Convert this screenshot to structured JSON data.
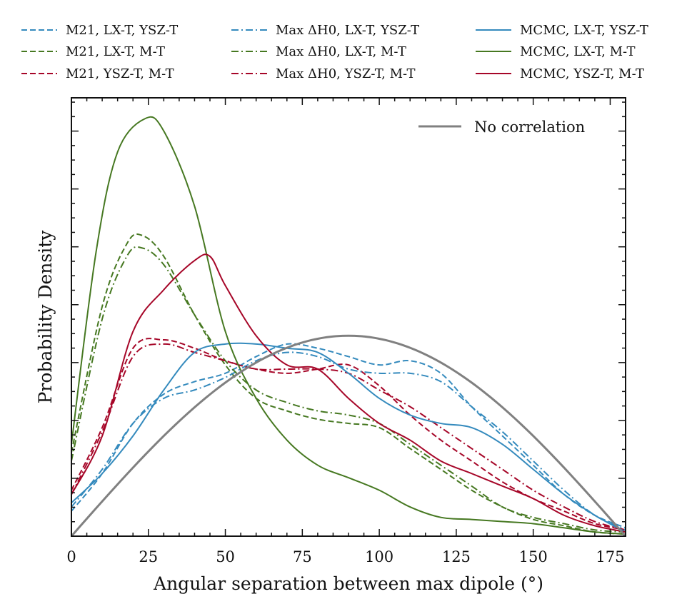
{
  "chart_data": {
    "type": "line",
    "xlabel": "Angular separation between max dipole (°)",
    "ylabel": "Probability Density",
    "xlim": [
      0,
      180
    ],
    "ylim": [
      0,
      1.0
    ],
    "x_ticks": [
      0,
      25,
      50,
      75,
      100,
      125,
      150,
      175
    ],
    "x_tick_labels": [
      "0",
      "25",
      "50",
      "75",
      "100",
      "125",
      "150",
      "175"
    ],
    "y_tick_labels_shown": false,
    "grid": false,
    "legend_top": {
      "placement": "above-plot",
      "columns": 3,
      "entries": [
        {
          "label": "M21, LX-T, YSZ-T",
          "series": "m21_lx_ysz"
        },
        {
          "label": "M21, LX-T, M-T",
          "series": "m21_lx_m"
        },
        {
          "label": "M21, YSZ-T, M-T",
          "series": "m21_ysz_m"
        },
        {
          "label": "Max ΔH0, LX-T, YSZ-T",
          "series": "maxh_lx_ysz"
        },
        {
          "label": "Max ΔH0, LX-T, M-T",
          "series": "maxh_lx_m"
        },
        {
          "label": "Max ΔH0, YSZ-T, M-T",
          "series": "maxh_ysz_m"
        },
        {
          "label": "MCMC, LX-T, YSZ-T",
          "series": "mcmc_lx_ysz"
        },
        {
          "label": "MCMC, LX-T, M-T",
          "series": "mcmc_lx_m"
        },
        {
          "label": "MCMC, YSZ-T, M-T",
          "series": "mcmc_ysz_m"
        }
      ]
    },
    "legend_inner": {
      "placement": "top-right",
      "label": "No correlation"
    },
    "series": [
      {
        "id": "m21_lx_ysz",
        "name": "M21, LX-T, YSZ-T",
        "color": "#348abd",
        "dash": "dashed",
        "points": [
          [
            0,
            0.06
          ],
          [
            10,
            0.15
          ],
          [
            20,
            0.27
          ],
          [
            30,
            0.34
          ],
          [
            40,
            0.37
          ],
          [
            50,
            0.39
          ],
          [
            60,
            0.43
          ],
          [
            70,
            0.46
          ],
          [
            80,
            0.45
          ],
          [
            90,
            0.43
          ],
          [
            100,
            0.41
          ],
          [
            110,
            0.42
          ],
          [
            120,
            0.39
          ],
          [
            130,
            0.31
          ],
          [
            140,
            0.24
          ],
          [
            150,
            0.17
          ],
          [
            160,
            0.1
          ],
          [
            170,
            0.05
          ],
          [
            180,
            0.02
          ]
        ]
      },
      {
        "id": "m21_lx_m",
        "name": "M21, LX-T, M-T",
        "color": "#467821",
        "dash": "dashed",
        "points": [
          [
            0,
            0.2
          ],
          [
            10,
            0.55
          ],
          [
            18,
            0.7
          ],
          [
            23,
            0.72
          ],
          [
            30,
            0.67
          ],
          [
            40,
            0.53
          ],
          [
            50,
            0.41
          ],
          [
            60,
            0.33
          ],
          [
            70,
            0.3
          ],
          [
            80,
            0.28
          ],
          [
            90,
            0.27
          ],
          [
            100,
            0.26
          ],
          [
            110,
            0.21
          ],
          [
            120,
            0.16
          ],
          [
            130,
            0.11
          ],
          [
            140,
            0.07
          ],
          [
            150,
            0.04
          ],
          [
            160,
            0.025
          ],
          [
            170,
            0.01
          ],
          [
            180,
            0.005
          ]
        ]
      },
      {
        "id": "m21_ysz_m",
        "name": "M21, YSZ-T, M-T",
        "color": "#a60628",
        "dash": "dashed",
        "points": [
          [
            0,
            0.11
          ],
          [
            10,
            0.26
          ],
          [
            20,
            0.45
          ],
          [
            30,
            0.47
          ],
          [
            40,
            0.45
          ],
          [
            50,
            0.42
          ],
          [
            60,
            0.4
          ],
          [
            70,
            0.39
          ],
          [
            80,
            0.4
          ],
          [
            90,
            0.41
          ],
          [
            100,
            0.36
          ],
          [
            110,
            0.29
          ],
          [
            120,
            0.23
          ],
          [
            130,
            0.18
          ],
          [
            140,
            0.13
          ],
          [
            150,
            0.09
          ],
          [
            160,
            0.06
          ],
          [
            170,
            0.03
          ],
          [
            180,
            0.015
          ]
        ]
      },
      {
        "id": "maxh_lx_ysz",
        "name": "Max ΔH0, LX-T, YSZ-T",
        "color": "#348abd",
        "dash": "dashdot",
        "points": [
          [
            0,
            0.07
          ],
          [
            10,
            0.16
          ],
          [
            20,
            0.27
          ],
          [
            30,
            0.33
          ],
          [
            40,
            0.35
          ],
          [
            50,
            0.38
          ],
          [
            60,
            0.42
          ],
          [
            70,
            0.44
          ],
          [
            80,
            0.43
          ],
          [
            90,
            0.4
          ],
          [
            100,
            0.39
          ],
          [
            110,
            0.39
          ],
          [
            120,
            0.37
          ],
          [
            130,
            0.31
          ],
          [
            140,
            0.25
          ],
          [
            150,
            0.18
          ],
          [
            160,
            0.11
          ],
          [
            170,
            0.05
          ],
          [
            180,
            0.015
          ]
        ]
      },
      {
        "id": "maxh_lx_m",
        "name": "Max ΔH0, LX-T, M-T",
        "color": "#467821",
        "dash": "dashdot",
        "points": [
          [
            0,
            0.18
          ],
          [
            10,
            0.52
          ],
          [
            18,
            0.67
          ],
          [
            23,
            0.69
          ],
          [
            30,
            0.65
          ],
          [
            40,
            0.53
          ],
          [
            50,
            0.42
          ],
          [
            60,
            0.35
          ],
          [
            70,
            0.32
          ],
          [
            80,
            0.3
          ],
          [
            90,
            0.29
          ],
          [
            100,
            0.27
          ],
          [
            110,
            0.22
          ],
          [
            120,
            0.17
          ],
          [
            130,
            0.12
          ],
          [
            140,
            0.07
          ],
          [
            150,
            0.045
          ],
          [
            160,
            0.03
          ],
          [
            170,
            0.015
          ],
          [
            180,
            0.01
          ]
        ]
      },
      {
        "id": "maxh_ysz_m",
        "name": "Max ΔH0, YSZ-T, M-T",
        "color": "#a60628",
        "dash": "dashdot",
        "points": [
          [
            0,
            0.1
          ],
          [
            10,
            0.25
          ],
          [
            20,
            0.43
          ],
          [
            30,
            0.46
          ],
          [
            40,
            0.44
          ],
          [
            50,
            0.42
          ],
          [
            60,
            0.4
          ],
          [
            70,
            0.4
          ],
          [
            80,
            0.4
          ],
          [
            90,
            0.39
          ],
          [
            100,
            0.35
          ],
          [
            110,
            0.31
          ],
          [
            120,
            0.26
          ],
          [
            130,
            0.21
          ],
          [
            140,
            0.16
          ],
          [
            150,
            0.11
          ],
          [
            160,
            0.07
          ],
          [
            170,
            0.035
          ],
          [
            180,
            0.015
          ]
        ]
      },
      {
        "id": "mcmc_lx_ysz",
        "name": "MCMC, LX-T, YSZ-T",
        "color": "#348abd",
        "dash": "solid",
        "points": [
          [
            0,
            0.08
          ],
          [
            10,
            0.15
          ],
          [
            20,
            0.24
          ],
          [
            30,
            0.35
          ],
          [
            40,
            0.44
          ],
          [
            50,
            0.46
          ],
          [
            60,
            0.46
          ],
          [
            70,
            0.45
          ],
          [
            80,
            0.44
          ],
          [
            90,
            0.39
          ],
          [
            100,
            0.33
          ],
          [
            110,
            0.29
          ],
          [
            120,
            0.27
          ],
          [
            130,
            0.26
          ],
          [
            140,
            0.22
          ],
          [
            150,
            0.16
          ],
          [
            160,
            0.1
          ],
          [
            170,
            0.05
          ],
          [
            180,
            0.01
          ]
        ]
      },
      {
        "id": "mcmc_lx_m",
        "name": "MCMC, LX-T, M-T",
        "color": "#467821",
        "dash": "solid",
        "points": [
          [
            0,
            0.22
          ],
          [
            8,
            0.68
          ],
          [
            15,
            0.92
          ],
          [
            24,
            1.0
          ],
          [
            30,
            0.97
          ],
          [
            40,
            0.79
          ],
          [
            50,
            0.49
          ],
          [
            60,
            0.33
          ],
          [
            70,
            0.23
          ],
          [
            80,
            0.17
          ],
          [
            90,
            0.14
          ],
          [
            100,
            0.11
          ],
          [
            110,
            0.07
          ],
          [
            120,
            0.045
          ],
          [
            130,
            0.04
          ],
          [
            140,
            0.035
          ],
          [
            150,
            0.03
          ],
          [
            160,
            0.02
          ],
          [
            170,
            0.01
          ],
          [
            180,
            0.005
          ]
        ]
      },
      {
        "id": "mcmc_ysz_m",
        "name": "MCMC, YSZ-T, M-T",
        "color": "#a60628",
        "dash": "solid",
        "points": [
          [
            0,
            0.1
          ],
          [
            10,
            0.24
          ],
          [
            20,
            0.49
          ],
          [
            30,
            0.59
          ],
          [
            40,
            0.66
          ],
          [
            45,
            0.67
          ],
          [
            50,
            0.6
          ],
          [
            60,
            0.48
          ],
          [
            70,
            0.41
          ],
          [
            80,
            0.4
          ],
          [
            90,
            0.33
          ],
          [
            100,
            0.27
          ],
          [
            110,
            0.23
          ],
          [
            120,
            0.18
          ],
          [
            130,
            0.15
          ],
          [
            140,
            0.12
          ],
          [
            150,
            0.09
          ],
          [
            160,
            0.05
          ],
          [
            170,
            0.025
          ],
          [
            180,
            0.01
          ]
        ]
      },
      {
        "id": "no_corr",
        "name": "No correlation",
        "color": "#808080",
        "dash": "solid",
        "width": 3,
        "function": "sin",
        "amplitude": 0.48
      }
    ]
  }
}
